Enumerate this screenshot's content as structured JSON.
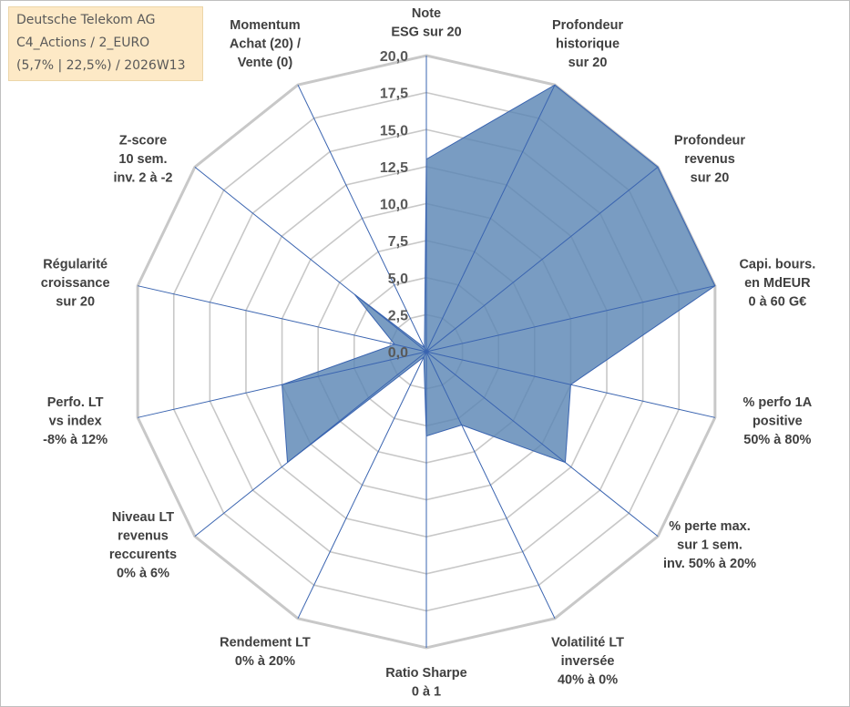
{
  "info": {
    "line1": "Deutsche Telekom AG",
    "line2": "C4_Actions / 2_EURO",
    "line3": "(5,7% | 22,5%) / 2026W13"
  },
  "chart_data": {
    "type": "radar",
    "title": "",
    "range": [
      0,
      20
    ],
    "ticks": [
      "0,0",
      "2,5",
      "5,0",
      "7,5",
      "10,0",
      "12,5",
      "15,0",
      "17,5",
      "20,0"
    ],
    "colors": {
      "fill": "#5b86b5",
      "line": "#3a64b0",
      "grid": "#c8c8c8",
      "text": "#404040"
    },
    "axes": [
      {
        "lines": [
          "Note",
          "ESG sur 20"
        ]
      },
      {
        "lines": [
          "Profondeur",
          "historique",
          "sur 20"
        ]
      },
      {
        "lines": [
          "Profondeur",
          "revenus",
          "sur 20"
        ]
      },
      {
        "lines": [
          "Capi. bours.",
          "en MdEUR",
          "0 à 60 G€"
        ]
      },
      {
        "lines": [
          "% perfo 1A",
          "positive",
          "50% à 80%"
        ]
      },
      {
        "lines": [
          "% perte max.",
          "sur 1 sem.",
          "inv. 50% à 20%"
        ]
      },
      {
        "lines": [
          "Volatilité LT",
          "inversée",
          "40% à 0%"
        ]
      },
      {
        "lines": [
          "Ratio Sharpe",
          "0 à 1"
        ]
      },
      {
        "lines": [
          "Rendement LT",
          "0% à 20%"
        ]
      },
      {
        "lines": [
          "Niveau LT",
          "revenus",
          "reccurents",
          "0% à 6%"
        ]
      },
      {
        "lines": [
          "Perfo. LT",
          "vs index",
          "-8% à 12%"
        ]
      },
      {
        "lines": [
          "Régularité",
          "croissance",
          "sur 20"
        ]
      },
      {
        "lines": [
          "Z-score",
          "10 sem.",
          "inv. 2 à -2"
        ]
      },
      {
        "lines": [
          "Momentum",
          "Achat (20) /",
          "Vente (0)"
        ]
      }
    ],
    "series": [
      {
        "name": "Deutsche Telekom AG",
        "values": [
          13,
          20,
          20,
          20,
          10,
          12,
          5.5,
          5.7,
          0.4,
          12,
          10,
          2.2,
          6.2,
          0.3
        ]
      }
    ]
  }
}
